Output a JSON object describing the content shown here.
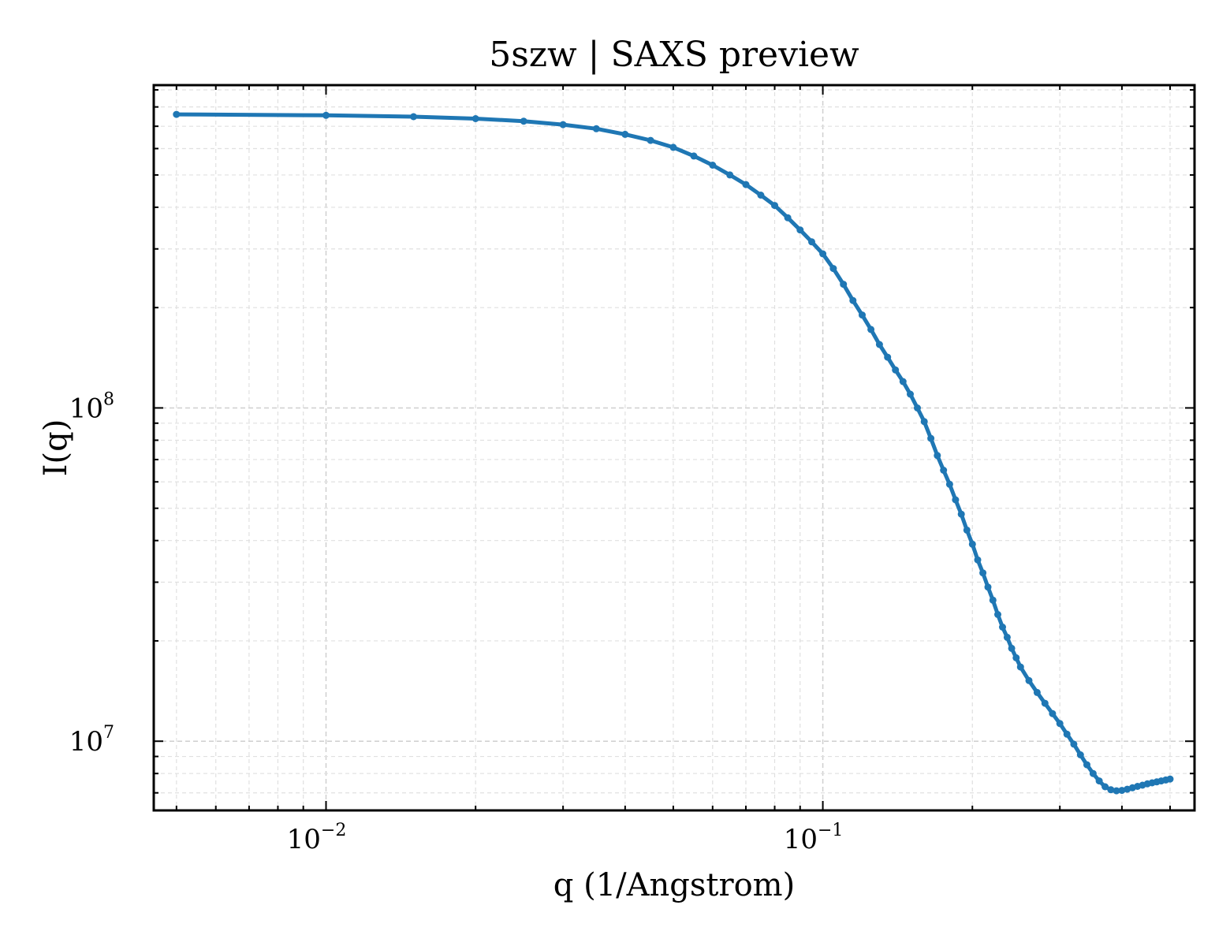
{
  "chart_data": {
    "type": "line",
    "title": "5szw | SAXS preview",
    "xlabel": "q (1/Angstrom)",
    "ylabel": "I(q)",
    "xscale": "log",
    "yscale": "log",
    "xlim": [
      0.0045,
      0.56
    ],
    "ylim": [
      6200000.0,
      930000000.0
    ],
    "grid": true,
    "color": "#1f77b4",
    "x_tick_labels": [
      {
        "base": "10",
        "exp": "−2",
        "value": 0.01
      },
      {
        "base": "10",
        "exp": "−1",
        "value": 0.1
      }
    ],
    "y_tick_labels": [
      {
        "base": "10",
        "exp": "7",
        "value": 10000000.0
      },
      {
        "base": "10",
        "exp": "8",
        "value": 100000000.0
      }
    ],
    "series": [
      {
        "x": [
          0.005,
          0.01,
          0.015,
          0.02,
          0.025,
          0.03,
          0.035,
          0.04,
          0.045,
          0.05,
          0.055,
          0.06,
          0.065,
          0.07,
          0.075,
          0.08,
          0.085,
          0.09,
          0.095,
          0.1,
          0.105,
          0.11,
          0.115,
          0.12,
          0.125,
          0.13,
          0.135,
          0.14,
          0.145,
          0.15,
          0.155,
          0.16,
          0.165,
          0.17,
          0.175,
          0.18,
          0.185,
          0.19,
          0.195,
          0.2,
          0.205,
          0.21,
          0.215,
          0.22,
          0.225,
          0.23,
          0.235,
          0.24,
          0.245,
          0.25,
          0.26,
          0.27,
          0.28,
          0.29,
          0.3,
          0.31,
          0.32,
          0.33,
          0.34,
          0.35,
          0.36,
          0.37,
          0.38,
          0.39,
          0.4,
          0.41,
          0.42,
          0.43,
          0.44,
          0.45,
          0.46,
          0.47,
          0.48,
          0.49,
          0.5
        ],
        "y": [
          760000000.0,
          755000000.0,
          748000000.0,
          738000000.0,
          725000000.0,
          708000000.0,
          688000000.0,
          662000000.0,
          635000000.0,
          605000000.0,
          570000000.0,
          535000000.0,
          500000000.0,
          468000000.0,
          435000000.0,
          405000000.0,
          372000000.0,
          342000000.0,
          315000000.0,
          290000000.0,
          262000000.0,
          235000000.0,
          210000000.0,
          190000000.0,
          172000000.0,
          155000000.0,
          142000000.0,
          130000000.0,
          120000000.0,
          110000000.0,
          100000000.0,
          91000000.0,
          81000000.0,
          72000000.0,
          65000000.0,
          59000000.0,
          53000000.0,
          48000000.0,
          43000000.0,
          39000000.0,
          35000000.0,
          32000000.0,
          29000000.0,
          26500000.0,
          24000000.0,
          22000000.0,
          20500000.0,
          19000000.0,
          17800000.0,
          16700000.0,
          15200000.0,
          14000000.0,
          13000000.0,
          12100000.0,
          11300000.0,
          10500000.0,
          9800000.0,
          9100000.0,
          8500000.0,
          8000000.0,
          7600000.0,
          7300000.0,
          7150000.0,
          7100000.0,
          7120000.0,
          7180000.0,
          7250000.0,
          7320000.0,
          7380000.0,
          7450000.0,
          7500000.0,
          7550000.0,
          7600000.0,
          7650000.0,
          7700000.0
        ]
      }
    ]
  }
}
